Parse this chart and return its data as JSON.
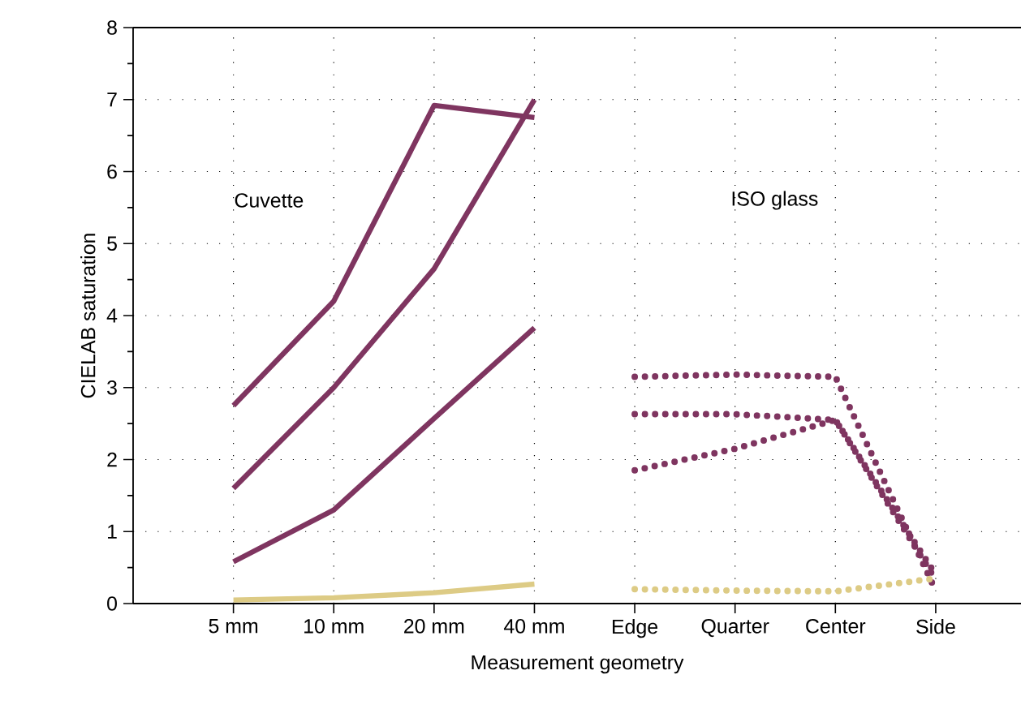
{
  "chart_data": {
    "type": "line",
    "xlabel": "Measurement geometry",
    "ylabel": "CIELAB saturation",
    "categories": [
      "5 mm",
      "10 mm",
      "20 mm",
      "40 mm",
      "Edge",
      "Quarter",
      "Center",
      "Side"
    ],
    "series": [
      {
        "color": "#7f3560",
        "line_style": "solid",
        "values": [
          2.75,
          4.2,
          6.92,
          6.75,
          null,
          null,
          null,
          null
        ]
      },
      {
        "color": "#7f3560",
        "line_style": "solid",
        "values": [
          1.6,
          3.0,
          4.65,
          7.0,
          null,
          null,
          null,
          null
        ]
      },
      {
        "color": "#7f3560",
        "line_style": "solid",
        "values": [
          0.58,
          1.3,
          2.57,
          3.83,
          null,
          null,
          null,
          null
        ]
      },
      {
        "color": "#ddcb85",
        "line_style": "solid",
        "values": [
          0.05,
          0.08,
          0.15,
          0.27,
          null,
          null,
          null,
          null
        ]
      },
      {
        "color": "#7f3560",
        "line_style": "dotted",
        "values": [
          null,
          null,
          null,
          null,
          3.15,
          3.18,
          3.15,
          0.18
        ]
      },
      {
        "color": "#7f3560",
        "line_style": "dotted",
        "values": [
          null,
          null,
          null,
          null,
          2.63,
          2.63,
          2.55,
          0.4
        ]
      },
      {
        "color": "#7f3560",
        "line_style": "dotted",
        "values": [
          null,
          null,
          null,
          null,
          1.85,
          2.15,
          2.55,
          0.33
        ]
      },
      {
        "color": "#ddcb85",
        "line_style": "dotted",
        "values": [
          null,
          null,
          null,
          null,
          0.2,
          0.18,
          0.17,
          0.35
        ]
      }
    ],
    "ylim": [
      0,
      8
    ],
    "yticks": [
      0,
      1,
      2,
      3,
      4,
      5,
      6,
      7,
      8
    ],
    "grid": true,
    "annotations": [
      "Cuvette",
      "ISO glass"
    ]
  }
}
